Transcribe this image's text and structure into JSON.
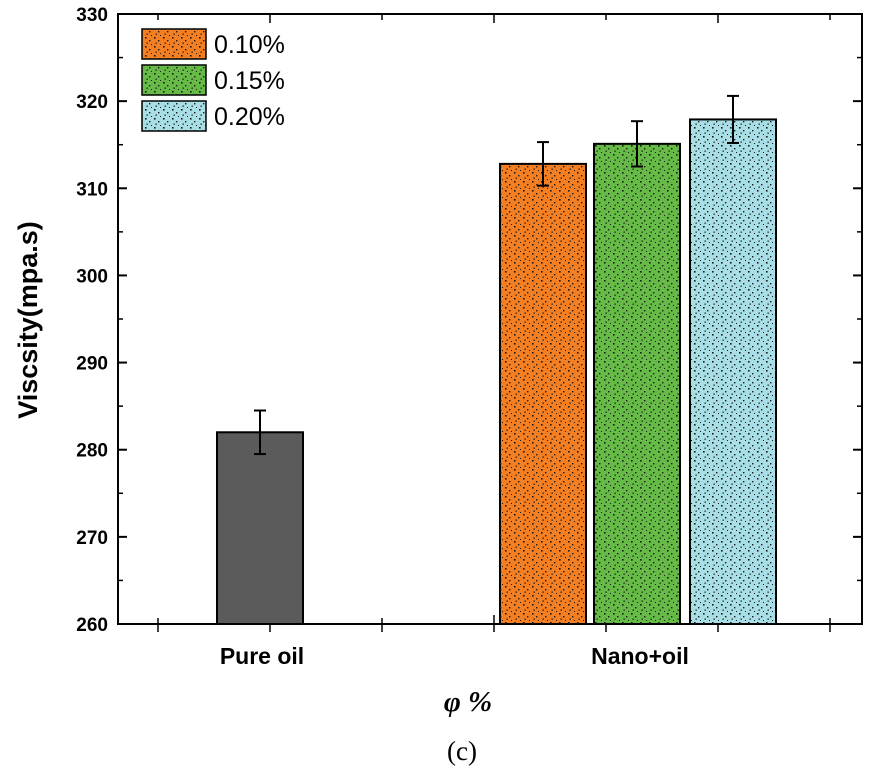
{
  "chart_data": {
    "type": "bar",
    "title": "",
    "xlabel": "φ %",
    "ylabel": "Viscsity(mpa.s)",
    "ylim": [
      260,
      330
    ],
    "yticks": [
      "260",
      "270",
      "280",
      "290",
      "300",
      "310",
      "320",
      "330"
    ],
    "categories": [
      "Pure oil",
      "Nano+oil"
    ],
    "bars": [
      {
        "category": "Pure oil",
        "series": "Pure oil",
        "value": 282.0,
        "error": 2.5,
        "color": "#5b5b5b"
      },
      {
        "category": "Nano+oil",
        "series": "0.10%",
        "value": 312.8,
        "error": 2.5,
        "color": "#f47f22"
      },
      {
        "category": "Nano+oil",
        "series": "0.15%",
        "value": 315.1,
        "error": 2.6,
        "color": "#66bb46"
      },
      {
        "category": "Nano+oil",
        "series": "0.20%",
        "value": 317.9,
        "error": 2.7,
        "color": "#a8dfe6"
      }
    ],
    "legend": {
      "position": "top-left",
      "entries": [
        {
          "label": "0.10%",
          "color": "#f47f22"
        },
        {
          "label": "0.15%",
          "color": "#66bb46"
        },
        {
          "label": "0.20%",
          "color": "#a8dfe6"
        }
      ]
    },
    "caption": "(c)"
  }
}
